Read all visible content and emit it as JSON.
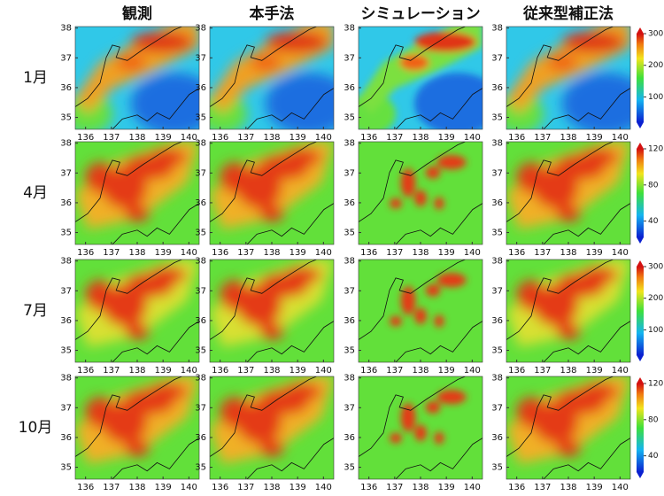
{
  "columns": [
    "観測",
    "本手法",
    "シミュレーション",
    "従来型補正法"
  ],
  "rows": [
    {
      "label": "1月",
      "colorbar": {
        "ticks": [
          100,
          200,
          300
        ],
        "lim": [
          20,
          300
        ]
      }
    },
    {
      "label": "4月",
      "colorbar": {
        "ticks": [
          40,
          80,
          120
        ],
        "lim": [
          22,
          120
        ]
      }
    },
    {
      "label": "7月",
      "colorbar": {
        "ticks": [
          100,
          200,
          300
        ],
        "lim": [
          20,
          300
        ]
      }
    },
    {
      "label": "10月",
      "colorbar": {
        "ticks": [
          40,
          80,
          120
        ],
        "lim": [
          22,
          120
        ]
      }
    }
  ],
  "map": {
    "xticks": [
      136,
      137,
      138,
      139,
      140
    ],
    "yticks": [
      35,
      36,
      37,
      38
    ],
    "xlim": [
      135.6,
      140.4
    ],
    "ylim": [
      34.6,
      38.05
    ]
  }
}
